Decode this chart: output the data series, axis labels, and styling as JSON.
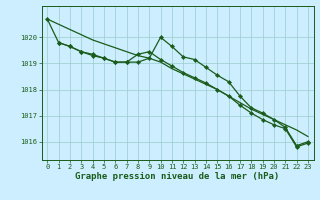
{
  "background_color": "#cceeff",
  "grid_color": "#99cccc",
  "line_color": "#1a5c1a",
  "marker_color": "#1a5c1a",
  "xlabel": "Graphe pression niveau de la mer (hPa)",
  "xlim": [
    -0.5,
    23.5
  ],
  "ylim": [
    1015.3,
    1021.2
  ],
  "yticks": [
    1016,
    1017,
    1018,
    1019,
    1020
  ],
  "xticks": [
    0,
    1,
    2,
    3,
    4,
    5,
    6,
    7,
    8,
    9,
    10,
    11,
    12,
    13,
    14,
    15,
    16,
    17,
    18,
    19,
    20,
    21,
    22,
    23
  ],
  "series1_x": [
    0,
    1,
    2,
    3,
    4,
    5,
    6,
    7,
    8,
    9,
    10,
    11,
    12,
    13,
    14,
    15,
    16,
    17,
    18,
    19,
    20,
    21,
    22,
    23
  ],
  "series1_y": [
    1020.7,
    1020.5,
    1020.3,
    1020.1,
    1019.9,
    1019.75,
    1019.6,
    1019.45,
    1019.3,
    1019.2,
    1019.05,
    1018.8,
    1018.6,
    1018.4,
    1018.2,
    1018.0,
    1017.75,
    1017.5,
    1017.25,
    1017.05,
    1016.85,
    1016.65,
    1016.45,
    1016.2
  ],
  "series2_x": [
    0,
    1,
    2,
    3,
    4,
    5,
    6,
    7,
    8,
    9,
    10,
    11,
    12,
    13,
    14,
    15,
    16,
    17,
    18,
    19,
    20,
    21,
    22,
    23
  ],
  "series2_y": [
    1020.7,
    1019.8,
    1019.65,
    1019.45,
    1019.35,
    1019.2,
    1019.05,
    1019.05,
    1019.05,
    1019.2,
    1020.0,
    1019.65,
    1019.25,
    1019.15,
    1018.85,
    1018.55,
    1018.3,
    1017.75,
    1017.3,
    1017.1,
    1016.85,
    1016.55,
    1015.85,
    1016.0
  ],
  "series3_x": [
    1,
    2,
    3,
    4,
    5,
    6,
    7,
    8,
    9,
    10,
    11,
    12,
    13,
    14,
    15,
    16,
    17,
    18,
    19,
    20,
    21,
    22,
    23
  ],
  "series3_y": [
    1019.8,
    1019.65,
    1019.45,
    1019.3,
    1019.2,
    1019.05,
    1019.05,
    1019.35,
    1019.45,
    1019.15,
    1018.9,
    1018.65,
    1018.45,
    1018.25,
    1018.0,
    1017.75,
    1017.4,
    1017.1,
    1016.85,
    1016.65,
    1016.5,
    1015.8,
    1015.95
  ]
}
